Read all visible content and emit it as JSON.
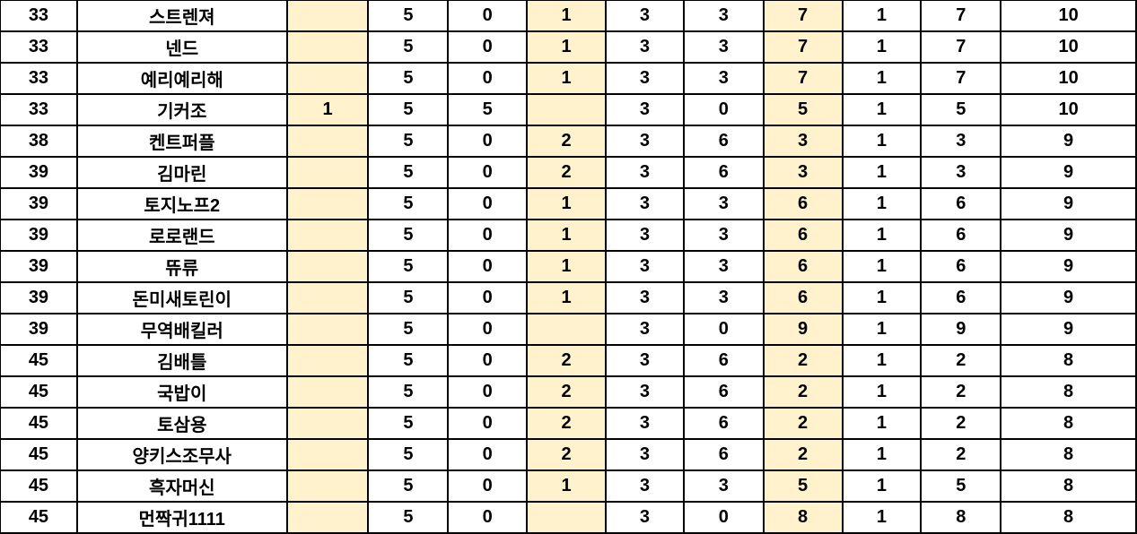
{
  "colors": {
    "highlight": "#FFF2CC",
    "grid": "#000000"
  },
  "highlight_columns": [
    2,
    5,
    8
  ],
  "rows": [
    [
      "33",
      "스트렌져",
      "",
      "5",
      "0",
      "1",
      "3",
      "3",
      "7",
      "1",
      "7",
      "10"
    ],
    [
      "33",
      "넨드",
      "",
      "5",
      "0",
      "1",
      "3",
      "3",
      "7",
      "1",
      "7",
      "10"
    ],
    [
      "33",
      "예리예리해",
      "",
      "5",
      "0",
      "1",
      "3",
      "3",
      "7",
      "1",
      "7",
      "10"
    ],
    [
      "33",
      "기커조",
      "1",
      "5",
      "5",
      "",
      "3",
      "0",
      "5",
      "1",
      "5",
      "10"
    ],
    [
      "38",
      "켄트퍼플",
      "",
      "5",
      "0",
      "2",
      "3",
      "6",
      "3",
      "1",
      "3",
      "9"
    ],
    [
      "39",
      "김마린",
      "",
      "5",
      "0",
      "2",
      "3",
      "6",
      "3",
      "1",
      "3",
      "9"
    ],
    [
      "39",
      "토지노프2",
      "",
      "5",
      "0",
      "1",
      "3",
      "3",
      "6",
      "1",
      "6",
      "9"
    ],
    [
      "39",
      "로로랜드",
      "",
      "5",
      "0",
      "1",
      "3",
      "3",
      "6",
      "1",
      "6",
      "9"
    ],
    [
      "39",
      "뜌류",
      "",
      "5",
      "0",
      "1",
      "3",
      "3",
      "6",
      "1",
      "6",
      "9"
    ],
    [
      "39",
      "돈미새토린이",
      "",
      "5",
      "0",
      "1",
      "3",
      "3",
      "6",
      "1",
      "6",
      "9"
    ],
    [
      "39",
      "무역배킬러",
      "",
      "5",
      "0",
      "",
      "3",
      "0",
      "9",
      "1",
      "9",
      "9"
    ],
    [
      "45",
      "김배틀",
      "",
      "5",
      "0",
      "2",
      "3",
      "6",
      "2",
      "1",
      "2",
      "8"
    ],
    [
      "45",
      "국밥이",
      "",
      "5",
      "0",
      "2",
      "3",
      "6",
      "2",
      "1",
      "2",
      "8"
    ],
    [
      "45",
      "토삼용",
      "",
      "5",
      "0",
      "2",
      "3",
      "6",
      "2",
      "1",
      "2",
      "8"
    ],
    [
      "45",
      "양키스조무사",
      "",
      "5",
      "0",
      "2",
      "3",
      "6",
      "2",
      "1",
      "2",
      "8"
    ],
    [
      "45",
      "흑자머신",
      "",
      "5",
      "0",
      "1",
      "3",
      "3",
      "5",
      "1",
      "5",
      "8"
    ],
    [
      "45",
      "먼짝귀1111",
      "",
      "5",
      "0",
      "",
      "3",
      "0",
      "8",
      "1",
      "8",
      "8"
    ]
  ]
}
